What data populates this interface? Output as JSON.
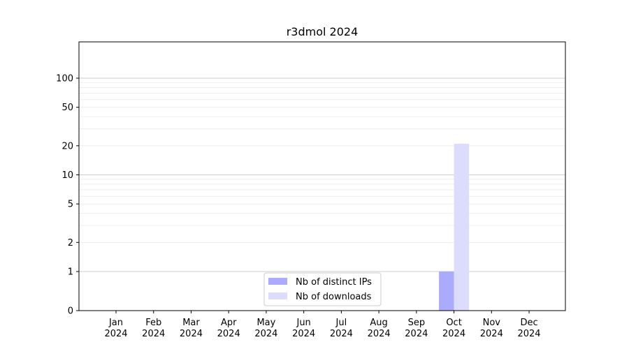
{
  "chart_data": {
    "type": "bar",
    "title": "r3dmol 2024",
    "xlabel": "",
    "ylabel": "",
    "yscale": "symlog",
    "ylim": [
      0,
      120
    ],
    "yticks": [
      0,
      1,
      2,
      5,
      10,
      20,
      50,
      100
    ],
    "grid": true,
    "legend_position": "bottom-center",
    "categories": [
      [
        "Jan",
        "2024"
      ],
      [
        "Feb",
        "2024"
      ],
      [
        "Mar",
        "2024"
      ],
      [
        "Apr",
        "2024"
      ],
      [
        "May",
        "2024"
      ],
      [
        "Jun",
        "2024"
      ],
      [
        "Jul",
        "2024"
      ],
      [
        "Aug",
        "2024"
      ],
      [
        "Sep",
        "2024"
      ],
      [
        "Oct",
        "2024"
      ],
      [
        "Nov",
        "2024"
      ],
      [
        "Dec",
        "2024"
      ]
    ],
    "series": [
      {
        "name": "Nb of distinct IPs",
        "color": "#aaaaff",
        "values": [
          0,
          0,
          0,
          0,
          0,
          0,
          0,
          0,
          0,
          1,
          0,
          0
        ]
      },
      {
        "name": "Nb of downloads",
        "color": "#dcdcff",
        "values": [
          0,
          0,
          0,
          0,
          0,
          0,
          0,
          0,
          0,
          21,
          0,
          0
        ]
      }
    ]
  }
}
